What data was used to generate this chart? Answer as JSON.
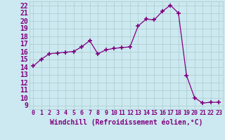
{
  "x": [
    0,
    1,
    2,
    3,
    4,
    5,
    6,
    7,
    8,
    9,
    10,
    11,
    12,
    13,
    14,
    15,
    16,
    17,
    18,
    19,
    20,
    21,
    22,
    23
  ],
  "y": [
    14.1,
    15.0,
    15.7,
    15.8,
    15.9,
    16.0,
    16.6,
    17.4,
    15.7,
    16.2,
    16.4,
    16.5,
    16.6,
    19.3,
    20.2,
    20.1,
    21.2,
    22.0,
    21.0,
    12.9,
    10.0,
    9.3,
    9.4,
    9.4
  ],
  "line_color": "#800080",
  "marker": "D",
  "marker_size": 2,
  "bg_color": "#cce8f0",
  "grid_color": "#aacccc",
  "xlabel": "Windchill (Refroidissement éolien,°C)",
  "xlabel_fontsize": 7,
  "ytick_fontsize": 7,
  "xtick_fontsize": 6,
  "ylim": [
    8.5,
    22.5
  ],
  "xlim": [
    -0.5,
    23.5
  ]
}
